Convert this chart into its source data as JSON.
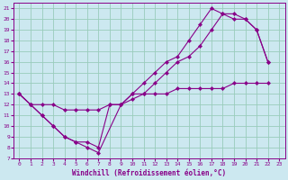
{
  "xlabel": "Windchill (Refroidissement éolien,°C)",
  "bg_color": "#cce8f0",
  "grid_color": "#99ccbb",
  "line_color": "#880088",
  "xlim": [
    -0.5,
    23.5
  ],
  "ylim": [
    7,
    21.5
  ],
  "xticks": [
    0,
    1,
    2,
    3,
    4,
    5,
    6,
    7,
    8,
    9,
    10,
    11,
    12,
    13,
    14,
    15,
    16,
    17,
    18,
    19,
    20,
    21,
    22,
    23
  ],
  "yticks": [
    7,
    8,
    9,
    10,
    11,
    12,
    13,
    14,
    15,
    16,
    17,
    18,
    19,
    20,
    21
  ],
  "line1_x": [
    0,
    1,
    2,
    3,
    4,
    5,
    6,
    7,
    9,
    10,
    11,
    12,
    13,
    14,
    15,
    16,
    17,
    18,
    19,
    20,
    21,
    22
  ],
  "line1_y": [
    13,
    12,
    11,
    10,
    9,
    8.5,
    8,
    7.5,
    12,
    13,
    13,
    14,
    15,
    16,
    16.5,
    17.5,
    19,
    20.5,
    20,
    20,
    19,
    16
  ],
  "line2_x": [
    0,
    1,
    2,
    3,
    4,
    5,
    6,
    7,
    8,
    9,
    10,
    11,
    12,
    13,
    14,
    15,
    16,
    17,
    18,
    19,
    20,
    21,
    22
  ],
  "line2_y": [
    13,
    12,
    11,
    10,
    9,
    8.5,
    8.5,
    8,
    12,
    12,
    13,
    14,
    15,
    16,
    16.5,
    18,
    19.5,
    21,
    20.5,
    20.5,
    20,
    19,
    16
  ],
  "line3_x": [
    0,
    1,
    2,
    3,
    4,
    5,
    6,
    7,
    8,
    9,
    10,
    11,
    12,
    13,
    14,
    15,
    16,
    17,
    18,
    19,
    20,
    21,
    22
  ],
  "line3_y": [
    13,
    12,
    12,
    12,
    11.5,
    11.5,
    11.5,
    11.5,
    12,
    12,
    12.5,
    13,
    13,
    13,
    13.5,
    13.5,
    13.5,
    13.5,
    13.5,
    14,
    14,
    14,
    14
  ]
}
